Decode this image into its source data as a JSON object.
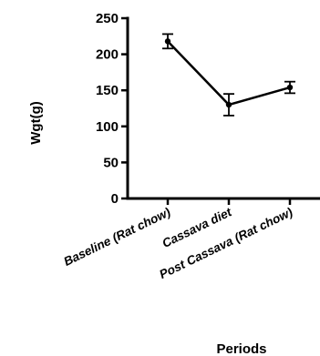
{
  "chart_data": {
    "type": "line",
    "categories": [
      "Baseline (Rat chow)",
      "Cassava diet",
      "Post Cassava (Rat chow)"
    ],
    "series": [
      {
        "values": [
          218,
          130,
          154
        ],
        "error": [
          10,
          15,
          8
        ]
      }
    ],
    "xlabel": "Periods",
    "ylabel": "Wgt(g)",
    "ylim": [
      0,
      250
    ],
    "yticks": [
      0,
      50,
      100,
      150,
      200,
      250
    ],
    "grid": false,
    "colors": {
      "line": "#000000",
      "axis": "#000000"
    }
  }
}
